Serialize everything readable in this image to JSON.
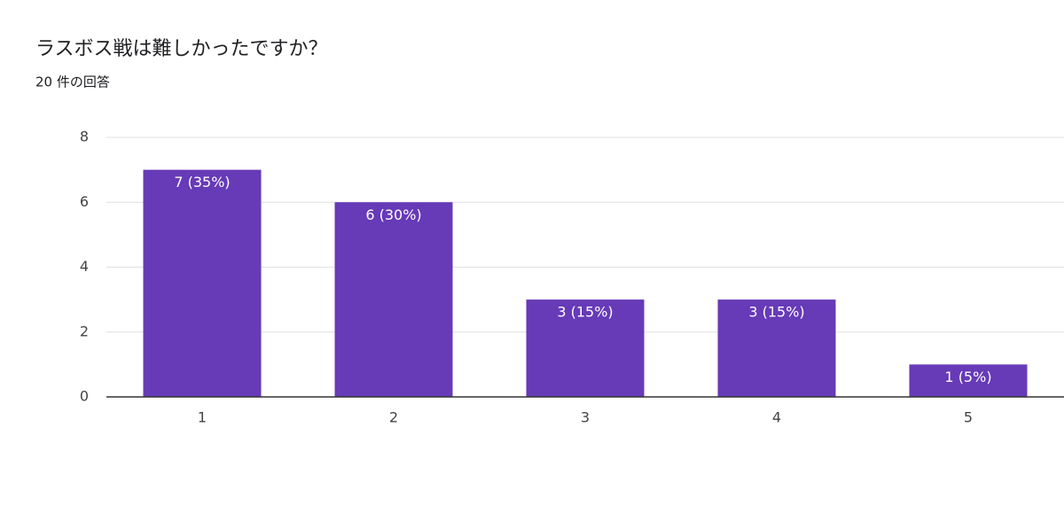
{
  "chart_data": {
    "type": "bar",
    "title": "ラスボス戦は難しかったですか？",
    "subtitle": "20 件の回答",
    "categories": [
      "1",
      "2",
      "3",
      "4",
      "5"
    ],
    "values": [
      7,
      6,
      3,
      3,
      1
    ],
    "value_labels": [
      "7 (35%)",
      "6 (30%)",
      "3 (15%)",
      "3 (15%)",
      "1 (5%)"
    ],
    "color": "#673ab7",
    "ylim": [
      0,
      8
    ],
    "yticks": [
      0,
      2,
      4,
      6,
      8
    ],
    "grid": true
  }
}
